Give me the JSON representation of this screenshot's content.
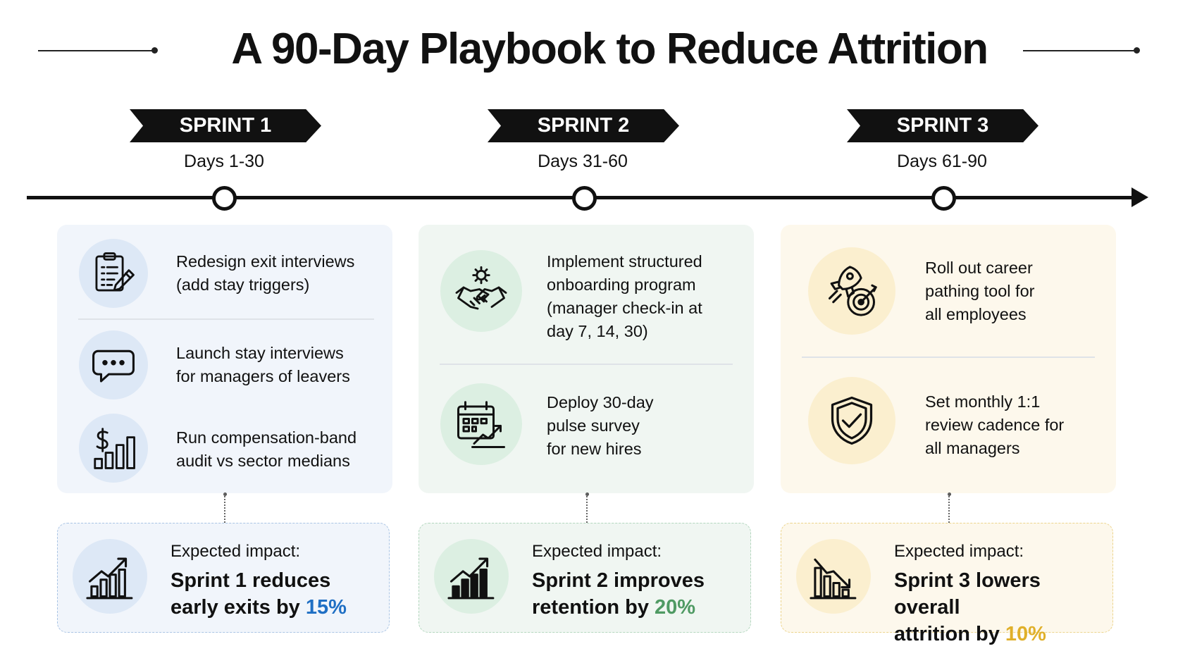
{
  "title": "A 90-Day Playbook to Reduce Attrition",
  "colors": {
    "sprint1": "#1f6fc4",
    "sprint2": "#4f9a63",
    "sprint3": "#e0b02a",
    "ink": "#111111"
  },
  "sprints": [
    {
      "label": "SPRINT 1",
      "days": "Days 1-30",
      "tasks": [
        {
          "icon": "clipboard-pencil-icon",
          "lines": [
            "Redesign exit interviews",
            "(add stay triggers)"
          ]
        },
        {
          "icon": "chat-bubble-icon",
          "lines": [
            "Launch stay interviews",
            "for managers of leavers"
          ]
        },
        {
          "icon": "dollar-bar-chart-icon",
          "lines": [
            "Run compensation-band",
            "audit vs sector medians"
          ]
        }
      ],
      "impact": {
        "icon": "rising-bar-chart-icon",
        "label": "Expected impact:",
        "line1": "Sprint 1 reduces",
        "line2_prefix": "early exits by ",
        "value": "15%"
      }
    },
    {
      "label": "SPRINT 2",
      "days": "Days 31-60",
      "tasks": [
        {
          "icon": "gear-handshake-icon",
          "lines": [
            "Implement structured",
            "onboarding program",
            "(manager check-in at",
            "day 7, 14, 30)"
          ]
        },
        {
          "icon": "calendar-trend-icon",
          "lines": [
            "Deploy 30-day",
            "pulse survey",
            "for new hires"
          ]
        }
      ],
      "impact": {
        "icon": "rising-bar-chart-icon",
        "label": "Expected impact:",
        "line1": "Sprint 2 improves",
        "line2_prefix": "retention by ",
        "value": "20%"
      }
    },
    {
      "label": "SPRINT 3",
      "days": "Days 61-90",
      "tasks": [
        {
          "icon": "rocket-target-icon",
          "lines": [
            "Roll out career",
            "pathing tool for",
            "all employees"
          ]
        },
        {
          "icon": "shield-check-icon",
          "lines": [
            "Set monthly 1:1",
            "review cadence for",
            "all managers"
          ]
        }
      ],
      "impact": {
        "icon": "falling-bar-chart-icon",
        "label": "Expected impact:",
        "line1": "Sprint 3 lowers overall",
        "line2_prefix": "attrition by ",
        "value": "10%"
      }
    }
  ]
}
